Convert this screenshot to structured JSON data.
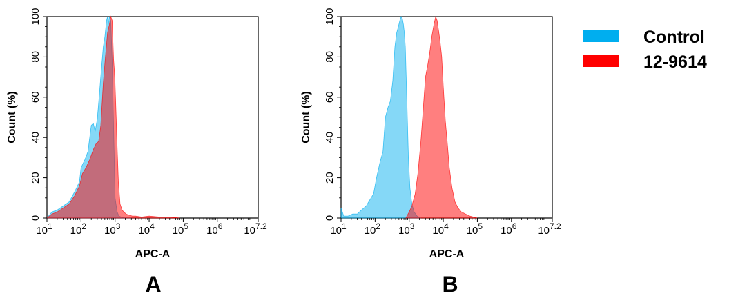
{
  "legend": [
    {
      "name": "Control",
      "color": "#00aeef"
    },
    {
      "name": "12-9614",
      "color": "#ff0000"
    }
  ],
  "chart_data": [
    {
      "type": "area",
      "panel": "A",
      "xlabel": "APC-A",
      "ylabel": "Count  (%)",
      "xscale": "log",
      "xlim": [
        10,
        15848932
      ],
      "ylim": [
        0,
        100
      ],
      "xticks": [
        {
          "value": 10,
          "base": "10",
          "exp": "1"
        },
        {
          "value": 100,
          "base": "10",
          "exp": "2"
        },
        {
          "value": 1000,
          "base": "10",
          "exp": "3"
        },
        {
          "value": 10000,
          "base": "10",
          "exp": "4"
        },
        {
          "value": 100000,
          "base": "10",
          "exp": "5"
        },
        {
          "value": 1000000,
          "base": "10",
          "exp": "6"
        },
        {
          "value": 15848932,
          "base": "10",
          "exp": "7.2"
        }
      ],
      "yticks": [
        "0",
        "20",
        "40",
        "60",
        "80",
        "100"
      ],
      "series": [
        {
          "name": "Control",
          "color": "#00aeef",
          "x": [
            10,
            14,
            20,
            30,
            45,
            65,
            90,
            100,
            130,
            160,
            200,
            230,
            260,
            300,
            340,
            400,
            450,
            500,
            560,
            600,
            630,
            680,
            750,
            820,
            900,
            1000,
            1150,
            1300,
            1500,
            2000,
            3000
          ],
          "y": [
            0,
            3,
            4,
            6,
            8,
            13,
            18,
            25,
            29,
            33,
            46,
            47,
            43,
            49,
            60,
            75,
            85,
            90,
            98,
            100,
            96,
            100,
            98,
            78,
            46,
            10,
            3,
            1,
            0.5,
            0,
            0
          ]
        },
        {
          "name": "12-9614",
          "color": "#ff0000",
          "x": [
            10,
            14,
            20,
            30,
            45,
            65,
            90,
            110,
            140,
            180,
            230,
            280,
            330,
            380,
            450,
            520,
            600,
            680,
            750,
            820,
            900,
            980,
            1050,
            1150,
            1250,
            1400,
            1600,
            1800,
            2100,
            2500,
            3200,
            4000,
            6000,
            10000,
            20000,
            40000,
            80000
          ],
          "y": [
            0,
            2,
            3,
            5,
            7,
            11,
            16,
            22,
            25,
            29,
            34,
            37,
            38,
            46,
            67,
            80,
            92,
            96,
            100,
            98,
            79,
            70,
            55,
            35,
            18,
            7,
            4,
            3,
            2,
            1.5,
            1,
            1,
            0.5,
            1,
            0.5,
            0.5,
            0
          ]
        }
      ]
    },
    {
      "type": "area",
      "panel": "B",
      "xlabel": "APC-A",
      "ylabel": "Count  (%)",
      "xscale": "log",
      "xlim": [
        10,
        15848932
      ],
      "ylim": [
        0,
        100
      ],
      "xticks": [
        {
          "value": 10,
          "base": "10",
          "exp": "1"
        },
        {
          "value": 100,
          "base": "10",
          "exp": "2"
        },
        {
          "value": 1000,
          "base": "10",
          "exp": "3"
        },
        {
          "value": 10000,
          "base": "10",
          "exp": "4"
        },
        {
          "value": 100000,
          "base": "10",
          "exp": "5"
        },
        {
          "value": 1000000,
          "base": "10",
          "exp": "6"
        },
        {
          "value": 15848932,
          "base": "10",
          "exp": "7.2"
        }
      ],
      "yticks": [
        "0",
        "20",
        "40",
        "60",
        "80",
        "100"
      ],
      "series": [
        {
          "name": "Control",
          "color": "#00aeef",
          "x": [
            10,
            12,
            16,
            22,
            30,
            40,
            55,
            70,
            90,
            110,
            140,
            170,
            200,
            240,
            280,
            330,
            380,
            430,
            480,
            530,
            580,
            630,
            680,
            720,
            770,
            850,
            950,
            1050,
            1200,
            1400,
            1700,
            2200
          ],
          "y": [
            5,
            1,
            1,
            2,
            2,
            4,
            6,
            9,
            12,
            20,
            28,
            33,
            50,
            55,
            58,
            68,
            85,
            92,
            95,
            98,
            100,
            99,
            96,
            92,
            85,
            60,
            30,
            15,
            7,
            3,
            1,
            0
          ]
        },
        {
          "name": "12-9614",
          "color": "#ff0000",
          "x": [
            800,
            1000,
            1200,
            1500,
            1800,
            2200,
            2600,
            3000,
            3500,
            4000,
            4600,
            5300,
            6000,
            6600,
            7300,
            8000,
            9000,
            10000,
            11500,
            13000,
            15000,
            18000,
            22000,
            27000,
            34000,
            45000,
            60000,
            100000
          ],
          "y": [
            0,
            3,
            6,
            12,
            22,
            38,
            55,
            70,
            76,
            82,
            90,
            96,
            100,
            98,
            93,
            88,
            80,
            65,
            48,
            38,
            25,
            15,
            8,
            5,
            3,
            2,
            1,
            0
          ]
        }
      ]
    }
  ],
  "panels": [
    {
      "letter": "A"
    },
    {
      "letter": "B"
    }
  ]
}
